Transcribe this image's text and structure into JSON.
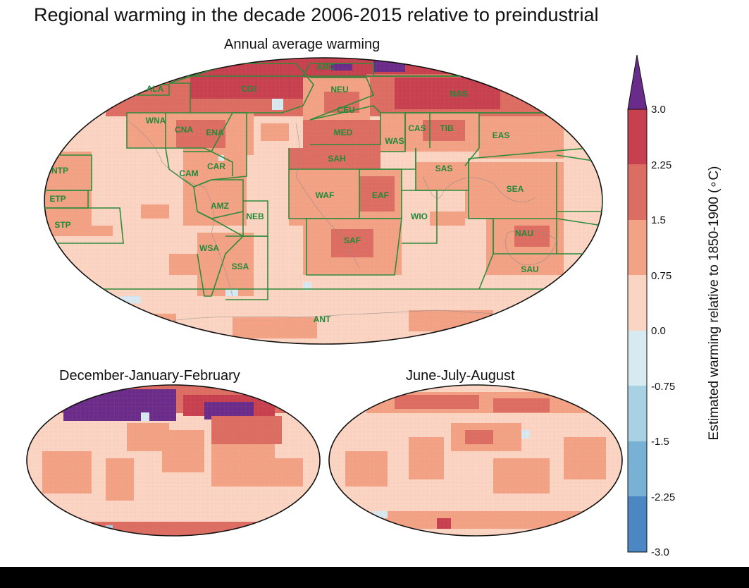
{
  "figure_title": "Regional warming in the decade 2006-2015 relative to preindustrial",
  "panels": {
    "annual": "Annual average warming",
    "djf": "December-January-February",
    "jja": "June-July-August"
  },
  "colorbar": {
    "title": "Estimated warming relative to 1850-1900 (∘C)",
    "ticks": [
      "3.0",
      "2.25",
      "1.5",
      "0.75",
      "0.0",
      "-0.75",
      "-1.5",
      "-2.25",
      "-3.0"
    ],
    "colors": {
      "extend_max": "#6a2c8a",
      "w2_25_3": "#c6404f",
      "w1_5_2_25": "#dc6d62",
      "w0_75_1_5": "#f2a285",
      "w0_0_75": "#fbd5c4",
      "c0_075": "#d7e9f1",
      "c075_15": "#a9d1e4",
      "c15_225": "#78b1d4",
      "c225_3": "#4b87c2"
    }
  },
  "regions": [
    {
      "code": "ARC"
    },
    {
      "code": "ALA"
    },
    {
      "code": "CGI"
    },
    {
      "code": "NEU"
    },
    {
      "code": "CEU"
    },
    {
      "code": "NAS"
    },
    {
      "code": "WNA"
    },
    {
      "code": "CNA"
    },
    {
      "code": "ENA"
    },
    {
      "code": "MED"
    },
    {
      "code": "CAS"
    },
    {
      "code": "TIB"
    },
    {
      "code": "WAS"
    },
    {
      "code": "EAS"
    },
    {
      "code": "SAH"
    },
    {
      "code": "CAM"
    },
    {
      "code": "CAR"
    },
    {
      "code": "NTP"
    },
    {
      "code": "ETP"
    },
    {
      "code": "STP"
    },
    {
      "code": "AMZ"
    },
    {
      "code": "NEB"
    },
    {
      "code": "WAF"
    },
    {
      "code": "EAF"
    },
    {
      "code": "SAS"
    },
    {
      "code": "SEA"
    },
    {
      "code": "WIO"
    },
    {
      "code": "SAF"
    },
    {
      "code": "NAU"
    },
    {
      "code": "WSA"
    },
    {
      "code": "SSA"
    },
    {
      "code": "SAU"
    },
    {
      "code": "ANT"
    }
  ]
}
